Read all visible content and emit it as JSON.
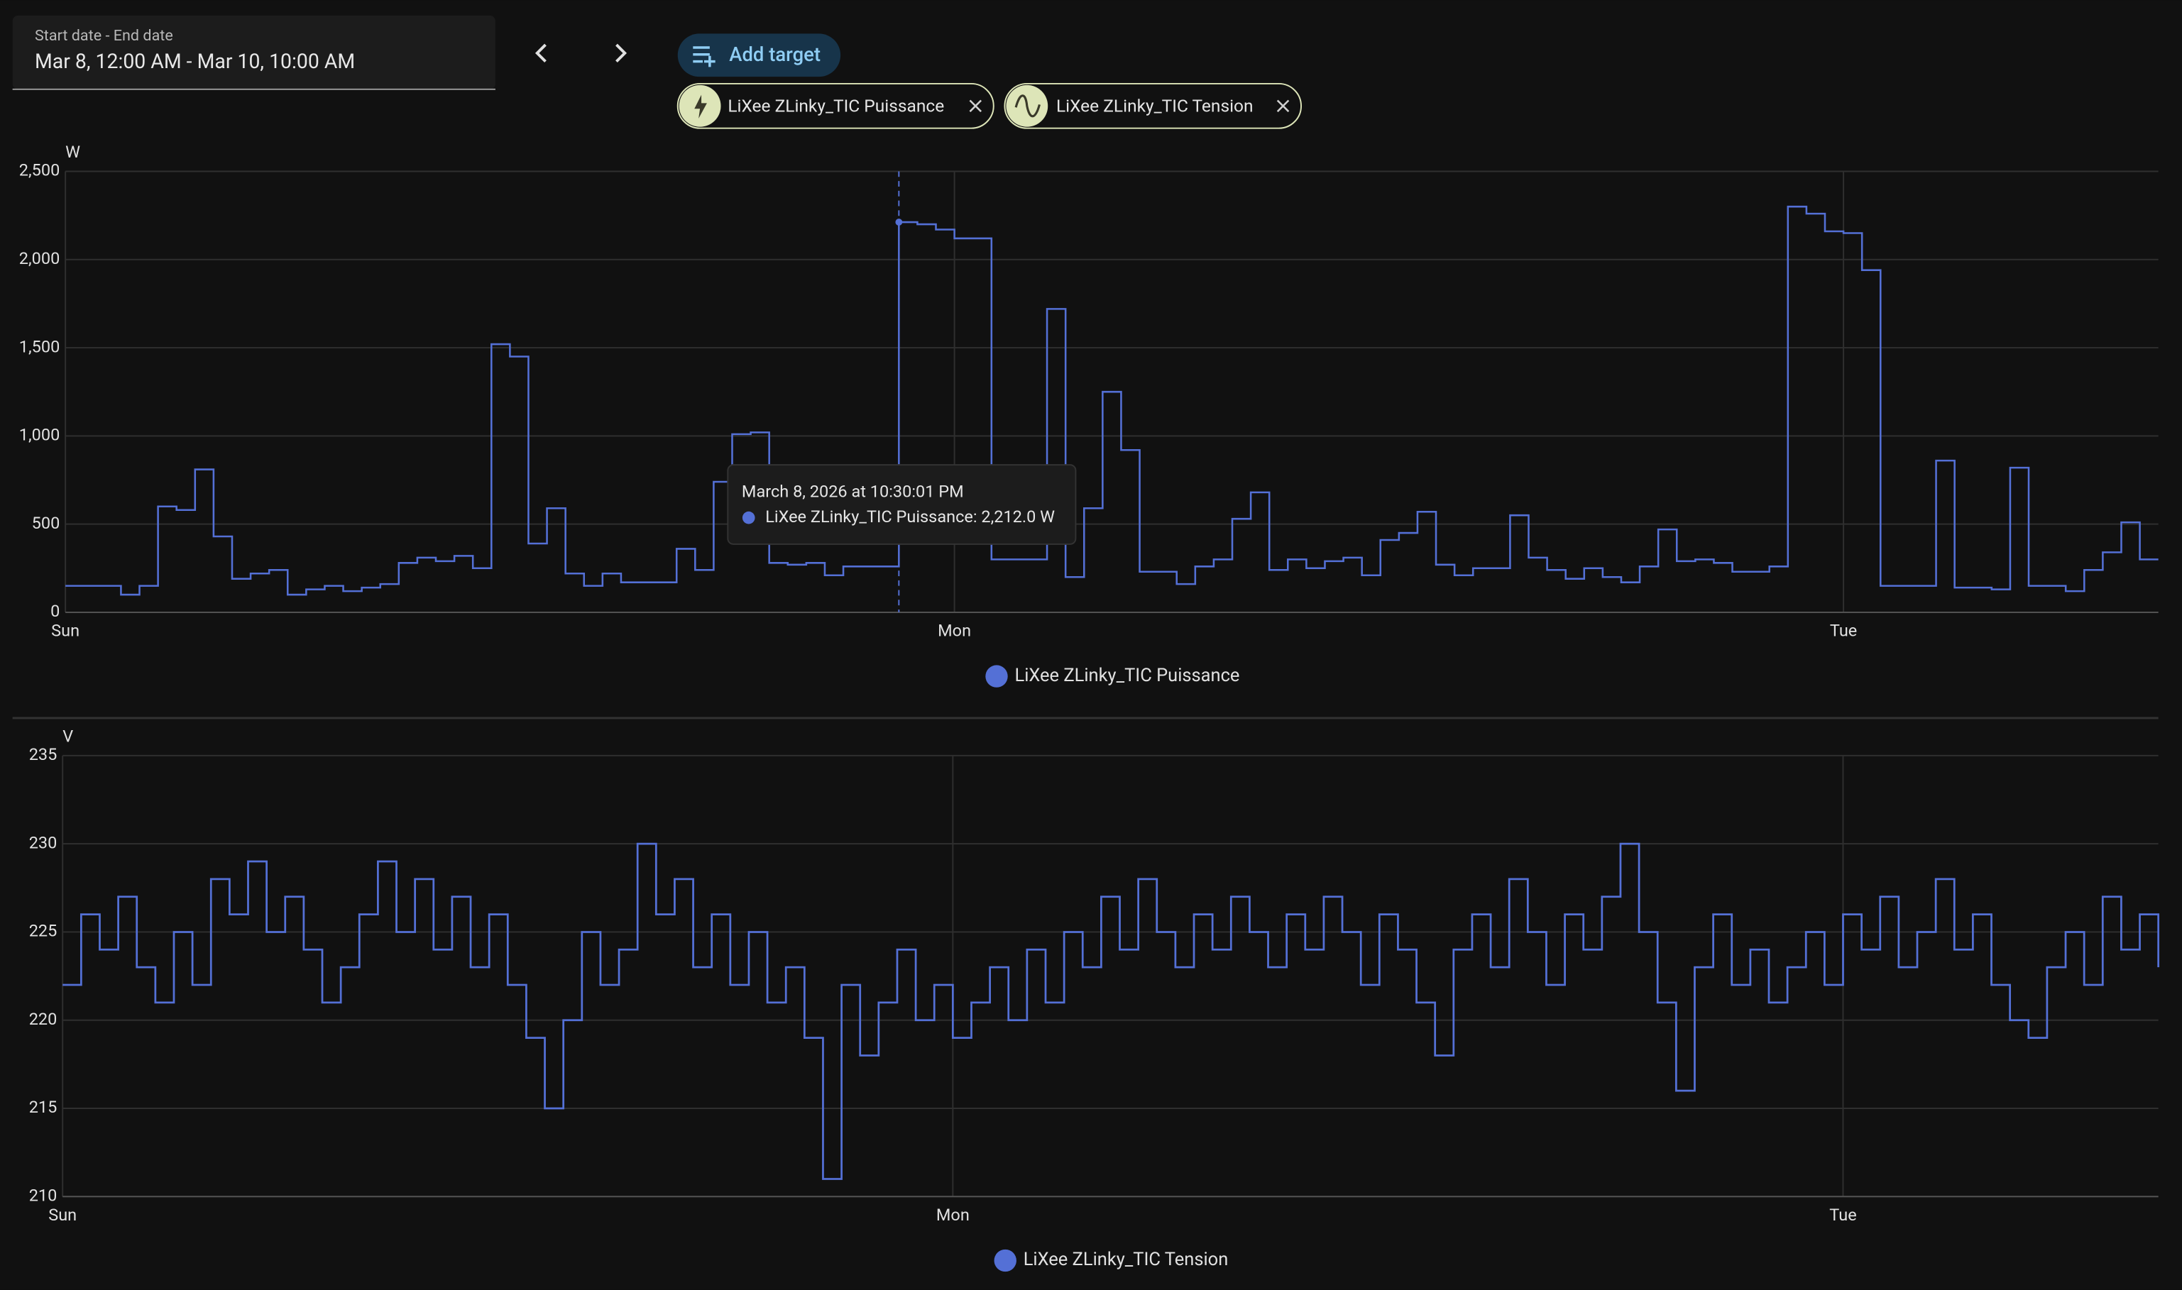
{
  "header": {
    "date_label": "Start date - End date",
    "date_value": "Mar 8, 12:00 AM - Mar 10, 10:00 AM",
    "add_target": "Add target",
    "chips": [
      "LiXee ZLinky_TIC Puissance",
      "LiXee ZLinky_TIC Tension"
    ]
  },
  "chart_data": [
    {
      "type": "line",
      "step": true,
      "y_label": "W",
      "xlim": [
        0,
        56.5
      ],
      "xticks": [
        {
          "value": 0,
          "label": "Sun"
        },
        {
          "value": 24,
          "label": "Mon"
        },
        {
          "value": 48,
          "label": "Tue"
        }
      ],
      "ylim": [
        0,
        2500
      ],
      "yticks": [
        0,
        500,
        {
          "value": 1000,
          "label": "1,000"
        },
        {
          "value": 1500,
          "label": "1,500"
        },
        {
          "value": 2000,
          "label": "2,000"
        },
        {
          "value": 2500,
          "label": "2,500"
        }
      ],
      "grid": true,
      "x": [
        0,
        1.5,
        2,
        2.5,
        3,
        3.5,
        4,
        4.5,
        5,
        5.5,
        6,
        6.5,
        7,
        7.5,
        8,
        8.5,
        9,
        9.5,
        10,
        10.5,
        11,
        11.5,
        12,
        12.5,
        13,
        13.5,
        14,
        14.5,
        15,
        16.5,
        17,
        17.5,
        18,
        18.5,
        19,
        19.5,
        20,
        20.5,
        21,
        22.5,
        23,
        23.5,
        24,
        25,
        26.5,
        27,
        27.5,
        28,
        28.5,
        29,
        30,
        30.5,
        31,
        31.5,
        32,
        32.5,
        33,
        33.5,
        34,
        34.5,
        35,
        35.5,
        36,
        36.5,
        37,
        37.5,
        38,
        39,
        39.5,
        40,
        40.5,
        41,
        41.5,
        42,
        42.5,
        43,
        43.5,
        44,
        44.5,
        45,
        46,
        46.5,
        47,
        47.5,
        48,
        48.5,
        49,
        50.5,
        51,
        52,
        52.5,
        53,
        54,
        54.5,
        55,
        55.5,
        56
      ],
      "series": [
        {
          "name": "LiXee ZLinky_TIC Puissance",
          "color": "#5470d6",
          "values": [
            150,
            100,
            150,
            600,
            580,
            810,
            430,
            190,
            220,
            240,
            100,
            130,
            150,
            120,
            140,
            160,
            280,
            310,
            290,
            320,
            250,
            1520,
            1450,
            390,
            590,
            220,
            150,
            220,
            170,
            360,
            240,
            740,
            1010,
            1020,
            280,
            270,
            280,
            210,
            260,
            2212,
            2200,
            2170,
            2120,
            300,
            1720,
            200,
            590,
            1250,
            920,
            230,
            160,
            260,
            300,
            530,
            680,
            240,
            300,
            250,
            290,
            310,
            210,
            410,
            450,
            570,
            270,
            210,
            250,
            550,
            310,
            240,
            190,
            250,
            200,
            170,
            260,
            470,
            290,
            300,
            280,
            230,
            260,
            2300,
            2260,
            2160,
            2150,
            1940,
            150,
            860,
            140,
            130,
            820,
            150,
            120,
            240,
            340,
            510,
            300
          ]
        }
      ],
      "tooltip": {
        "title": "March 8, 2026 at 10:30:01 PM",
        "x": 22.5,
        "value": 2212,
        "label": "LiXee ZLinky_TIC Puissance: 2,212.0 W"
      }
    },
    {
      "type": "line",
      "step": true,
      "y_label": "V",
      "xlim": [
        0,
        56.5
      ],
      "xticks": [
        {
          "value": 0,
          "label": "Sun"
        },
        {
          "value": 24,
          "label": "Mon"
        },
        {
          "value": 48,
          "label": "Tue"
        }
      ],
      "ylim": [
        210,
        235
      ],
      "yticks": [
        210,
        215,
        220,
        225,
        230,
        235
      ],
      "grid": true,
      "x": [
        0,
        0.5,
        1,
        1.5,
        2,
        2.5,
        3,
        3.5,
        4,
        4.5,
        5,
        5.5,
        6,
        6.5,
        7,
        7.5,
        8,
        8.5,
        9,
        9.5,
        10,
        10.5,
        11,
        11.5,
        12,
        12.5,
        13,
        13.5,
        14,
        14.5,
        15,
        15.5,
        16,
        16.5,
        17,
        17.5,
        18,
        18.5,
        19,
        19.5,
        20,
        20.5,
        21,
        21.5,
        22,
        22.5,
        23,
        23.5,
        24,
        24.5,
        25,
        25.5,
        26,
        26.5,
        27,
        27.5,
        28,
        28.5,
        29,
        29.5,
        30,
        30.5,
        31,
        31.5,
        32,
        32.5,
        33,
        33.5,
        34,
        34.5,
        35,
        35.5,
        36,
        36.5,
        37,
        37.5,
        38,
        38.5,
        39,
        39.5,
        40,
        40.5,
        41,
        41.5,
        42,
        42.5,
        43,
        43.5,
        44,
        44.5,
        45,
        45.5,
        46,
        46.5,
        47,
        47.5,
        48,
        48.5,
        49,
        49.5,
        50,
        50.5,
        51,
        51.5,
        52,
        52.5,
        53,
        53.5,
        54,
        54.5,
        55,
        55.5,
        56,
        56.5
      ],
      "series": [
        {
          "name": "LiXee ZLinky_TIC Tension",
          "color": "#5470d6",
          "values": [
            222,
            226,
            224,
            227,
            223,
            221,
            225,
            222,
            228,
            226,
            229,
            225,
            227,
            224,
            221,
            223,
            226,
            229,
            225,
            228,
            224,
            227,
            223,
            226,
            222,
            219,
            215,
            220,
            225,
            222,
            224,
            230,
            226,
            228,
            223,
            226,
            222,
            225,
            221,
            223,
            219,
            211,
            222,
            218,
            221,
            224,
            220,
            222,
            219,
            221,
            223,
            220,
            224,
            221,
            225,
            223,
            227,
            224,
            228,
            225,
            223,
            226,
            224,
            227,
            225,
            223,
            226,
            224,
            227,
            225,
            222,
            226,
            224,
            221,
            218,
            224,
            226,
            223,
            228,
            225,
            222,
            226,
            224,
            227,
            230,
            225,
            221,
            216,
            223,
            226,
            222,
            224,
            221,
            223,
            225,
            222,
            226,
            224,
            227,
            223,
            225,
            228,
            224,
            226,
            222,
            220,
            219,
            223,
            225,
            222,
            227,
            224,
            226,
            223
          ]
        }
      ]
    }
  ]
}
